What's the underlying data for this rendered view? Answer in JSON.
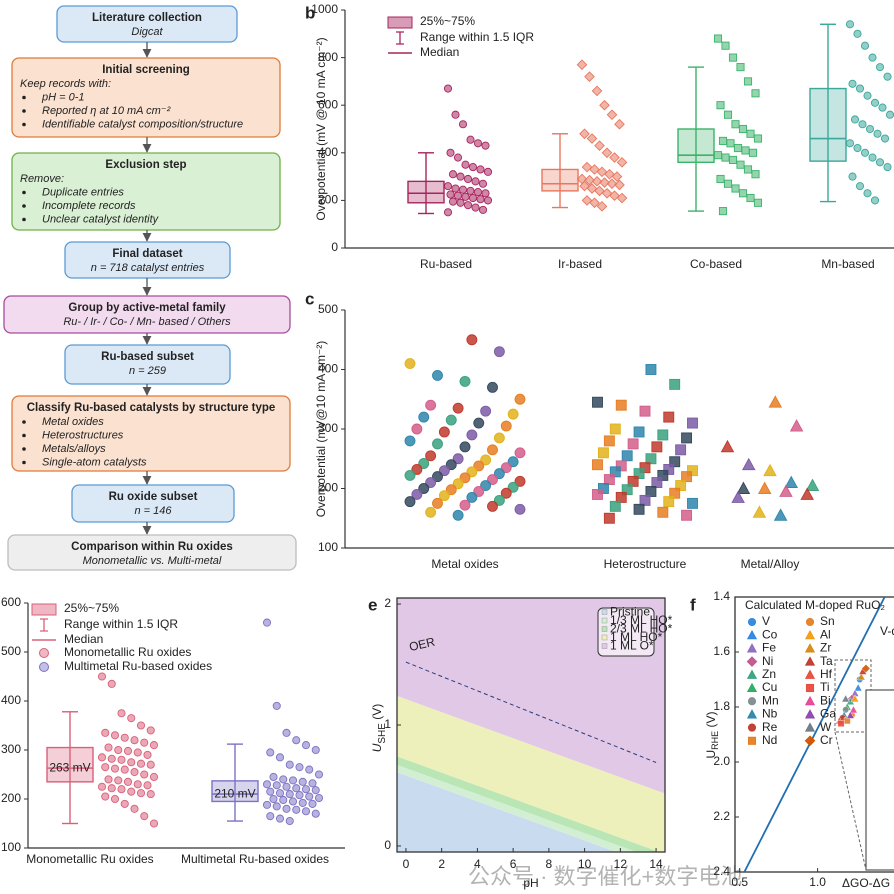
{
  "flowchart": {
    "nodes": [
      {
        "title": "Literature collection",
        "subtitle": "Digcat"
      },
      {
        "title": "Initial screening",
        "intro": "Keep records with:",
        "bullets": [
          "pH = 0-1",
          "Reported η at 10 mA cm⁻²",
          "Identifiable catalyst composition/structure"
        ]
      },
      {
        "title": "Exclusion step",
        "intro": "Remove:",
        "bullets": [
          "Duplicate entries",
          "Incomplete records",
          "Unclear catalyst identity"
        ]
      },
      {
        "title": "Final dataset",
        "subtitle": "n = 718 catalyst entries"
      },
      {
        "title": "Group by active-metal family",
        "subtitle": "Ru- / Ir- / Co- / Mn- based / Others"
      },
      {
        "title": "Ru-based subset",
        "subtitle": "n = 259"
      },
      {
        "title": "Classify Ru-based catalysts by structure type",
        "bullets": [
          "Metal oxides",
          "Heterostructures",
          "Metals/alloys",
          "Single-atom catalysts"
        ]
      },
      {
        "title": "Ru oxide subset",
        "subtitle": "n = 146"
      },
      {
        "title": "Comparison within Ru oxides",
        "subtitle": "Monometallic vs. Multi-metal"
      }
    ]
  },
  "chart_data": [
    {
      "type": "box",
      "panel": "b",
      "y_label": "Overpotential (mV @ 10 mA cm⁻²)",
      "legend_labels": {
        "box": "25%~75%",
        "range": "Range within 1.5 IQR",
        "median": "Median"
      },
      "ylim": [
        0,
        1000
      ],
      "yticks": [
        0,
        200,
        400,
        600,
        800,
        1000
      ],
      "categories": [
        "Ru-based",
        "Ir-based",
        "Co-based",
        "Mn-based"
      ],
      "series": [
        {
          "color": "#a8245e",
          "marker": "circle",
          "q1": 190,
          "median": 230,
          "q3": 280,
          "whisker_low": 145,
          "whisker_high": 400,
          "points": [
            670,
            560,
            520,
            455,
            440,
            430,
            400,
            380,
            350,
            340,
            330,
            320,
            310,
            300,
            290,
            280,
            270,
            260,
            250,
            245,
            240,
            235,
            230,
            225,
            220,
            215,
            210,
            205,
            200,
            195,
            190,
            180,
            170,
            160,
            150
          ]
        },
        {
          "color": "#e8775e",
          "marker": "diamond",
          "q1": 240,
          "median": 270,
          "q3": 330,
          "whisker_low": 170,
          "whisker_high": 480,
          "points": [
            770,
            720,
            660,
            600,
            560,
            520,
            480,
            460,
            430,
            400,
            380,
            360,
            340,
            330,
            320,
            310,
            300,
            290,
            285,
            280,
            275,
            270,
            265,
            260,
            250,
            240,
            230,
            220,
            210,
            200,
            190,
            175
          ]
        },
        {
          "color": "#3bb36a",
          "marker": "square",
          "q1": 360,
          "median": 390,
          "q3": 500,
          "whisker_low": 155,
          "whisker_high": 760,
          "points": [
            880,
            850,
            800,
            760,
            700,
            650,
            600,
            560,
            520,
            500,
            480,
            460,
            450,
            440,
            420,
            410,
            400,
            390,
            380,
            370,
            350,
            330,
            310,
            290,
            270,
            250,
            230,
            210,
            190,
            155
          ]
        },
        {
          "color": "#3aa89a",
          "marker": "circle",
          "q1": 365,
          "median": 460,
          "q3": 670,
          "whisker_low": 195,
          "whisker_high": 940,
          "points": [
            940,
            900,
            850,
            800,
            760,
            720,
            690,
            670,
            640,
            610,
            590,
            560,
            540,
            520,
            500,
            480,
            460,
            440,
            420,
            400,
            380,
            360,
            340,
            300,
            260,
            230,
            200
          ]
        }
      ]
    },
    {
      "type": "strip",
      "panel": "c",
      "y_label": "Overpotential (mV@10 mA cm⁻²)",
      "ylim": [
        100,
        500
      ],
      "yticks": [
        100,
        200,
        300,
        400,
        500
      ],
      "categories": [
        "Metal oxides",
        "Heterostructure",
        "Metal/Alloy"
      ],
      "markers": [
        "circle",
        "square",
        "triangle"
      ],
      "colors": [
        "#c0392b",
        "#2e86ab",
        "#e67e22",
        "#7d5ba6",
        "#3aa17e",
        "#d35d8a",
        "#e2b21a",
        "#34495e"
      ],
      "groups": [
        [
          450,
          430,
          410,
          390,
          380,
          370,
          350,
          340,
          335,
          330,
          325,
          320,
          315,
          310,
          305,
          300,
          295,
          290,
          285,
          280,
          275,
          270,
          265,
          260,
          255,
          250,
          248,
          245,
          242,
          240,
          238,
          235,
          232,
          230,
          228,
          225,
          222,
          220,
          218,
          215,
          212,
          210,
          208,
          205,
          202,
          200,
          198,
          195,
          192,
          190,
          188,
          185,
          180,
          178,
          175,
          172,
          170,
          165,
          160,
          155
        ],
        [
          400,
          375,
          345,
          340,
          330,
          320,
          310,
          300,
          295,
          290,
          285,
          280,
          275,
          270,
          265,
          260,
          255,
          250,
          245,
          240,
          238,
          235,
          232,
          230,
          228,
          225,
          222,
          220,
          215,
          212,
          210,
          205,
          200,
          198,
          195,
          192,
          190,
          185,
          180,
          178,
          175,
          170,
          165,
          160,
          155,
          150
        ],
        [
          345,
          305,
          270,
          240,
          230,
          210,
          205,
          200,
          200,
          195,
          190,
          185,
          160,
          155
        ]
      ]
    },
    {
      "type": "box",
      "panel": "d",
      "legend_labels": {
        "box": "25%~75%",
        "range": "Range within 1.5 IQR",
        "median": "Median"
      },
      "ylim": [
        100,
        600
      ],
      "yticks": [
        100,
        200,
        300,
        400,
        500,
        600
      ],
      "categories": [
        "Monometallic Ru oxides",
        "Multimetal Ru-based oxides"
      ],
      "series": [
        {
          "name": "Monometallic Ru oxides",
          "color": "#d9607a",
          "marker": "circle",
          "q1": 235,
          "median": 263,
          "median_label": "263 mV",
          "q3": 305,
          "whisker_low": 150,
          "whisker_high": 378,
          "points": [
            450,
            435,
            375,
            365,
            350,
            340,
            335,
            330,
            325,
            320,
            315,
            310,
            305,
            300,
            298,
            295,
            290,
            285,
            282,
            280,
            275,
            272,
            270,
            265,
            262,
            260,
            255,
            250,
            245,
            240,
            238,
            235,
            230,
            228,
            225,
            222,
            220,
            215,
            212,
            210,
            205,
            200,
            190,
            180,
            165,
            150
          ]
        },
        {
          "name": "Multimetal Ru-based oxides",
          "color": "#7b73c4",
          "marker": "circle",
          "q1": 195,
          "median": 210,
          "median_label": "210 mV",
          "q3": 237,
          "whisker_low": 155,
          "whisker_high": 312,
          "points": [
            560,
            390,
            335,
            320,
            310,
            300,
            295,
            285,
            270,
            265,
            260,
            250,
            245,
            240,
            238,
            235,
            232,
            230,
            228,
            225,
            222,
            220,
            218,
            215,
            212,
            210,
            208,
            205,
            202,
            200,
            198,
            195,
            192,
            190,
            188,
            185,
            180,
            178,
            175,
            170,
            165,
            160,
            155
          ]
        }
      ]
    },
    {
      "type": "phase",
      "panel": "e",
      "x_label": "pH",
      "y_label": {
        "main": "U",
        "sub": "SHE",
        "unit": " (V)"
      },
      "xlim": [
        -0.5,
        14.5
      ],
      "xticks": [
        0,
        2,
        4,
        6,
        8,
        10,
        12,
        14
      ],
      "ylim": [
        -0.05,
        2.05
      ],
      "yticks": [
        0,
        1,
        2
      ],
      "x": [
        0,
        14
      ],
      "series": [
        {
          "name": "Pristine",
          "color": "#c9dcef",
          "values": [
            0.62,
            -0.206
          ]
        },
        {
          "name": "1/3 ML HO*",
          "color": "#d3efd3",
          "values": [
            0.68,
            -0.146
          ]
        },
        {
          "name": "2/3 ML HO*",
          "color": "#b9e6b4",
          "values": [
            0.75,
            -0.076
          ]
        },
        {
          "name": "1 ML HO*",
          "color": "#eef0bc",
          "values": [
            1.25,
            0.424
          ]
        },
        {
          "name": "1 ML O*",
          "color": "#e2c8e7",
          "values": [
            2.05,
            2.05
          ]
        }
      ],
      "oer": {
        "name": "OER",
        "color": "#2c3e7a",
        "values": [
          1.52,
          0.69
        ]
      }
    },
    {
      "type": "scatter",
      "panel": "f",
      "x_label": "ΔGO-ΔG",
      "y_label": {
        "main": "U",
        "sub": "RHE",
        "unit": " (V)"
      },
      "legend_title": "Calculated M-doped RuO₂",
      "annotation": "V-d",
      "xlim": [
        0.47,
        1.49
      ],
      "xticks": [
        0.5,
        {
          "value": 1,
          "label": "1.0"
        }
      ],
      "ylim": [
        1.4,
        2.4
      ],
      "y_inverted": true,
      "yticks": [
        1.4,
        1.6,
        1.8,
        {
          "value": 2,
          "label": "2.0"
        },
        2.2,
        2.4
      ],
      "line": {
        "color": "#1f6fb2",
        "x": [
          0.53,
          1.43
        ],
        "values": [
          2.4,
          1.4
        ]
      },
      "series": [
        {
          "name": "V",
          "color": "#2e86de",
          "marker": "circle",
          "x": [
            1.27
          ],
          "values": [
            1.7
          ]
        },
        {
          "name": "Co",
          "color": "#2e86de",
          "marker": "triangle",
          "x": [
            1.26
          ],
          "values": [
            1.73
          ]
        },
        {
          "name": "Fe",
          "color": "#8e6bbf",
          "marker": "triangle",
          "x": [
            1.24
          ],
          "values": [
            1.75
          ]
        },
        {
          "name": "Ni",
          "color": "#c0558f",
          "marker": "diamond",
          "x": [
            1.22
          ],
          "values": [
            1.77
          ]
        },
        {
          "name": "Zn",
          "color": "#3aa17e",
          "marker": "triangle",
          "x": [
            1.21
          ],
          "values": [
            1.78
          ]
        },
        {
          "name": "Cu",
          "color": "#27ae60",
          "marker": "triangle",
          "x": [
            1.19
          ],
          "values": [
            1.8
          ]
        },
        {
          "name": "Mn",
          "color": "#7f8c8d",
          "marker": "circle",
          "x": [
            1.18
          ],
          "values": [
            1.81
          ]
        },
        {
          "name": "Nb",
          "color": "#2e86ab",
          "marker": "triangle",
          "x": [
            1.17
          ],
          "values": [
            1.83
          ]
        },
        {
          "name": "Re",
          "color": "#c0392b",
          "marker": "circle",
          "x": [
            1.16
          ],
          "values": [
            1.84
          ]
        },
        {
          "name": "Nd",
          "color": "#e67e22",
          "marker": "square",
          "x": [
            1.19
          ],
          "values": [
            1.85
          ]
        },
        {
          "name": "Sn",
          "color": "#e67e22",
          "marker": "circle",
          "x": [
            1.22
          ],
          "values": [
            1.83
          ]
        },
        {
          "name": "Al",
          "color": "#f39c12",
          "marker": "triangle",
          "x": [
            1.24
          ],
          "values": [
            1.77
          ]
        },
        {
          "name": "Zr",
          "color": "#d68910",
          "marker": "triangle",
          "x": [
            1.28
          ],
          "values": [
            1.69
          ]
        },
        {
          "name": "Ta",
          "color": "#c0392b",
          "marker": "triangle",
          "x": [
            1.29
          ],
          "values": [
            1.67
          ]
        },
        {
          "name": "Hf",
          "color": "#e74c3c",
          "marker": "triangle",
          "x": [
            1.14
          ],
          "values": [
            1.85
          ]
        },
        {
          "name": "Ti",
          "color": "#e74c3c",
          "marker": "square",
          "x": [
            1.15
          ],
          "values": [
            1.86
          ]
        },
        {
          "name": "Bi",
          "color": "#e84393",
          "marker": "triangle",
          "x": [
            1.23
          ],
          "values": [
            1.81
          ]
        },
        {
          "name": "Ga",
          "color": "#8e44ad",
          "marker": "triangle",
          "x": [
            1.21
          ],
          "values": [
            1.83
          ]
        },
        {
          "name": "W",
          "color": "#6c7a89",
          "marker": "triangle",
          "x": [
            1.18
          ],
          "values": [
            1.77
          ]
        },
        {
          "name": "Cr",
          "color": "#d35400",
          "marker": "diamond",
          "x": [
            1.31
          ],
          "values": [
            1.66
          ]
        }
      ]
    }
  ],
  "watermark": "公众号 · 数字催化+数字电池"
}
